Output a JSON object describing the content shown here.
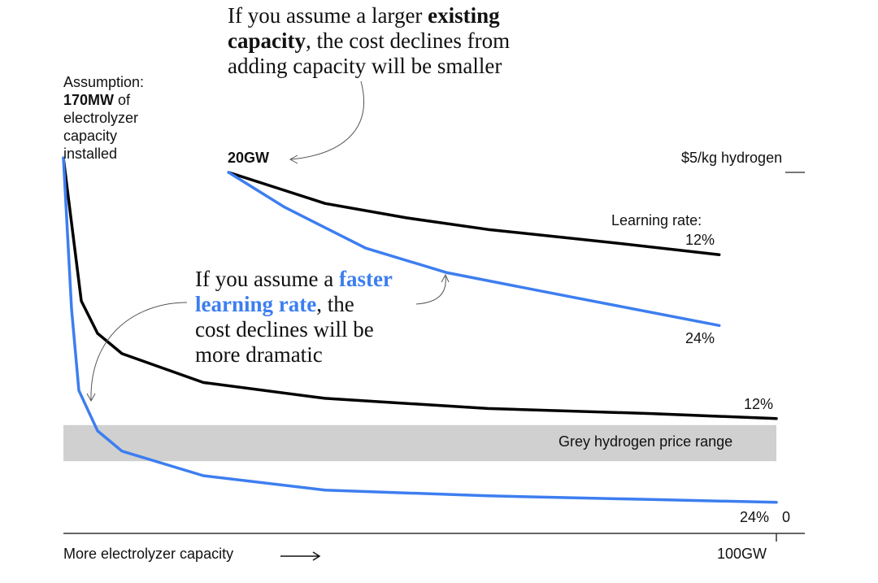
{
  "chart_data": {
    "type": "line",
    "xlabel": "More electrolyzer capacity",
    "x_tick_labels": [
      "100GW"
    ],
    "y_tick_labels": [
      "$5/kg hydrogen",
      "0"
    ],
    "xlim": [
      0.17,
      100
    ],
    "ylim": [
      0,
      5
    ],
    "grid": false,
    "band": {
      "label": "Grey hydrogen price range",
      "range": [
        1.0,
        1.5
      ]
    },
    "series": [
      {
        "name": "12% (from 170MW)",
        "end_label": "12%",
        "color": "#000000",
        "x": [
          0.17,
          2.67,
          4.95,
          8.37,
          19.75,
          36.8,
          59.6,
          82.4,
          100
        ],
        "y": [
          5.2,
          3.22,
          2.77,
          2.49,
          2.09,
          1.87,
          1.73,
          1.66,
          1.59
        ]
      },
      {
        "name": "24% (from 170MW)",
        "end_label": "24%",
        "color": "#3d7ef0",
        "x": [
          0.17,
          1.31,
          2.33,
          4.95,
          8.37,
          19.75,
          36.8,
          59.6,
          82.4,
          100
        ],
        "y": [
          5.2,
          3.11,
          1.98,
          1.42,
          1.14,
          0.8,
          0.6,
          0.52,
          0.47,
          0.43
        ]
      },
      {
        "name": "12% (from 20GW)",
        "end_label": "12%",
        "color": "#000000",
        "x": [
          23.3,
          36.8,
          48.2,
          59.6,
          76.7,
          92.0
        ],
        "y": [
          5.0,
          4.57,
          4.37,
          4.21,
          4.03,
          3.86
        ]
      },
      {
        "name": "24% (from 20GW)",
        "end_label": "24%",
        "color": "#3d7ef0",
        "x": [
          23.3,
          31.1,
          42.5,
          53.9,
          71.0,
          92.0
        ],
        "y": [
          5.0,
          4.52,
          3.95,
          3.61,
          3.28,
          2.88
        ]
      }
    ],
    "annotations": {
      "assumption": {
        "l1": "Assumption:",
        "bold": "170MW",
        "l2a": " of",
        "l3": "electrolyzer",
        "l4": "capacity",
        "l5": "installed"
      },
      "start_20gw": "20GW",
      "learning_rate_label": "Learning rate:",
      "top_note": {
        "l1a": "If you assume a larger ",
        "l1b": "existing",
        "l2a": "capacity",
        "l2b": ", the cost declines from",
        "l3": "adding capacity will be smaller"
      },
      "mid_note": {
        "l1a": "If you assume a ",
        "l1b": "faster",
        "l2a": "learning rate",
        "l2b": ", the",
        "l3": "cost declines will be",
        "l4": "more dramatic"
      }
    },
    "colors": {
      "blue": "#3d7ef0",
      "black": "#000000",
      "band": "#d0d0d0"
    }
  }
}
